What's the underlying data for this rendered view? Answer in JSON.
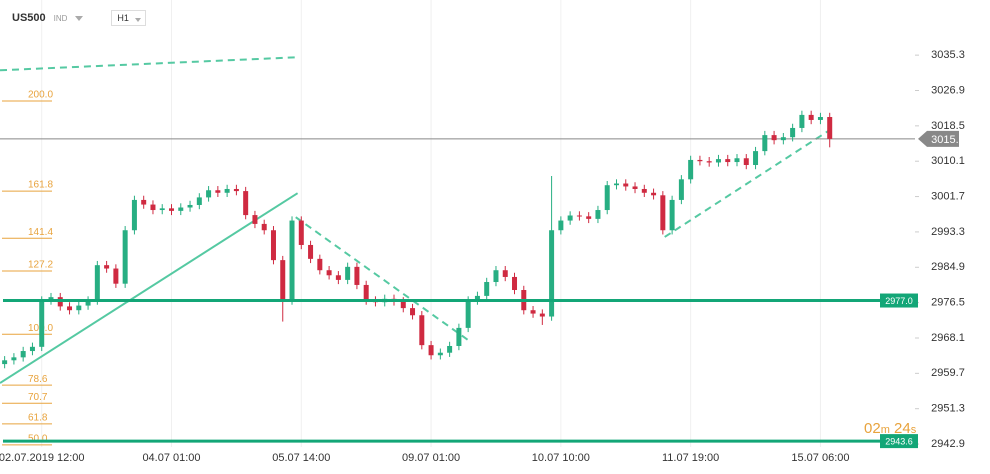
{
  "chart_data": {
    "type": "candlestick",
    "symbol": "US500",
    "market": "IND",
    "timeframe": "H1",
    "categories": [
      null,
      null,
      null,
      null,
      "02.07.2019 12:00",
      null,
      null,
      null,
      null,
      null,
      null,
      null,
      null,
      null,
      null,
      null,
      null,
      null,
      "04.07 01:00",
      null,
      null,
      null,
      null,
      null,
      null,
      null,
      null,
      null,
      null,
      null,
      null,
      null,
      "05.07 14:00",
      null,
      null,
      null,
      null,
      null,
      null,
      null,
      null,
      null,
      null,
      null,
      null,
      null,
      "09.07 01:00",
      null,
      null,
      null,
      null,
      null,
      null,
      null,
      null,
      null,
      null,
      null,
      null,
      null,
      "10.07 10:00",
      null,
      null,
      null,
      null,
      null,
      null,
      null,
      null,
      null,
      null,
      null,
      null,
      null,
      "11.07 19:00",
      null,
      null,
      null,
      null,
      null,
      null,
      null,
      null,
      null,
      null,
      null,
      null,
      null,
      "15.07 06:00",
      null
    ],
    "open": [
      2961.9,
      2962.8,
      2963.5,
      2965.0,
      2966.0,
      2977.0,
      2977.8,
      2975.6,
      2974.7,
      2975.8,
      2977.0,
      2985.4,
      2984.6,
      2981.0,
      2993.7,
      3000.9,
      2999.8,
      2998.5,
      2998.9,
      2998.3,
      2999.1,
      2999.7,
      3001.5,
      3003.2,
      3002.6,
      3003.5,
      3003.0,
      2997.3,
      2995.2,
      2993.7,
      2986.6,
      2977.0,
      2996.0,
      2990.2,
      2986.9,
      2984.2,
      2983.0,
      2981.9,
      2985.0,
      2980.7,
      2977.0,
      2976.6,
      2977.4,
      2976.8,
      2975.2,
      2973.5,
      2966.4,
      2964.0,
      2964.6,
      2966.2,
      2970.5,
      2977.0,
      2978.1,
      2981.4,
      2984.2,
      2982.6,
      2979.5,
      2974.7,
      2973.9,
      2973.2,
      2993.7,
      2996.0,
      2997.2,
      2997.0,
      2996.4,
      2998.5,
      3004.4,
      3004.8,
      3004.1,
      3003.5,
      3002.6,
      3002.0,
      2993.7,
      3000.9,
      3005.8,
      3010.4,
      3010.1,
      3009.8,
      3010.6,
      3009.9,
      3010.8,
      3009.2,
      3012.5,
      3016.3,
      3015.1,
      3015.8,
      3018.0,
      3021.1,
      3019.9,
      3020.6
    ],
    "high": [
      2963.8,
      2964.5,
      2966.0,
      2967.0,
      2978.0,
      2978.8,
      2978.8,
      2976.6,
      2976.8,
      2978.0,
      2986.4,
      2986.4,
      2985.6,
      2994.7,
      3001.9,
      3001.9,
      3000.8,
      2999.9,
      2999.9,
      3000.1,
      3000.7,
      3002.5,
      3004.2,
      3004.2,
      3004.5,
      3004.5,
      3004.0,
      2998.3,
      2996.2,
      2994.7,
      2987.6,
      2997.0,
      2997.0,
      2991.2,
      2987.9,
      2985.2,
      2984.0,
      2986.0,
      2986.0,
      2981.7,
      2978.0,
      2978.4,
      2978.4,
      2977.8,
      2976.2,
      2974.5,
      2967.4,
      2965.6,
      2967.2,
      2971.5,
      2978.0,
      2979.1,
      2982.4,
      2985.2,
      2985.2,
      2983.6,
      2980.5,
      2975.7,
      2974.9,
      3006.6,
      2997.0,
      2998.2,
      2998.2,
      2998.0,
      2999.5,
      3005.4,
      3005.8,
      3005.8,
      3005.1,
      3004.5,
      3003.6,
      3003.0,
      3001.9,
      3006.8,
      3011.4,
      3011.4,
      3011.1,
      3011.6,
      3011.6,
      3011.8,
      3011.8,
      3013.5,
      3017.3,
      3017.3,
      3016.8,
      3019.0,
      3022.1,
      3022.1,
      3021.6,
      3021.6
    ],
    "low": [
      2960.9,
      2961.8,
      2962.5,
      2964.0,
      2965.0,
      2976.0,
      2974.6,
      2973.7,
      2973.7,
      2974.8,
      2976.0,
      2983.6,
      2980.0,
      2980.0,
      2992.7,
      2998.8,
      2997.5,
      2997.5,
      2997.3,
      2997.3,
      2998.1,
      2998.7,
      3000.5,
      3001.6,
      3001.6,
      3002.0,
      2996.3,
      2994.2,
      2992.7,
      2985.6,
      2972.0,
      2976.0,
      2989.2,
      2985.9,
      2983.2,
      2982.0,
      2980.9,
      2980.9,
      2979.7,
      2976.0,
      2975.6,
      2975.6,
      2975.8,
      2974.2,
      2972.5,
      2965.4,
      2963.0,
      2963.0,
      2963.6,
      2965.2,
      2969.5,
      2976.0,
      2977.1,
      2980.4,
      2981.6,
      2978.5,
      2973.7,
      2972.9,
      2971.2,
      2972.2,
      2992.7,
      2995.0,
      2996.0,
      2995.4,
      2995.4,
      2997.5,
      3003.4,
      3003.1,
      3002.5,
      3001.6,
      3001.0,
      2992.7,
      2992.7,
      2999.9,
      3004.8,
      3009.1,
      3008.8,
      3008.8,
      3008.9,
      3008.9,
      3008.2,
      3008.2,
      3011.5,
      3014.1,
      3014.1,
      3014.8,
      3017.0,
      3018.9,
      3018.9,
      3013.4
    ],
    "close": [
      2962.8,
      2963.5,
      2965.0,
      2966.0,
      2977.0,
      2977.8,
      2975.6,
      2974.7,
      2975.8,
      2977.0,
      2985.4,
      2984.6,
      2981.0,
      2993.7,
      3000.9,
      2999.8,
      2998.5,
      2998.9,
      2998.3,
      2999.1,
      2999.7,
      3001.5,
      3003.2,
      3002.6,
      3003.5,
      3003.0,
      2997.3,
      2995.2,
      2993.7,
      2986.6,
      2977.0,
      2996.0,
      2990.2,
      2986.9,
      2984.2,
      2983.0,
      2981.9,
      2985.0,
      2980.7,
      2977.0,
      2976.6,
      2977.4,
      2976.8,
      2975.2,
      2973.5,
      2966.4,
      2964.0,
      2964.6,
      2966.2,
      2970.5,
      2977.0,
      2978.1,
      2981.4,
      2984.2,
      2982.6,
      2979.5,
      2974.7,
      2973.9,
      2973.2,
      2993.7,
      2996.0,
      2997.2,
      2997.0,
      2996.4,
      2998.5,
      3004.4,
      3004.8,
      3004.1,
      3003.5,
      3002.6,
      3002.0,
      2993.7,
      3000.9,
      3005.8,
      3010.4,
      3010.1,
      3009.8,
      3010.6,
      3009.9,
      3010.8,
      3009.2,
      3012.5,
      3016.3,
      3015.1,
      3015.8,
      3018.0,
      3021.1,
      3019.9,
      3020.6,
      3015.4
    ],
    "up_color": "#27ae82",
    "down_color": "#cf2a41",
    "xlim": [
      -0.5,
      98.2
    ],
    "ylim": [
      2942.2,
      3048.4
    ],
    "yticks": [
      3035.3,
      3026.9,
      3018.5,
      3010.1,
      3001.7,
      2993.3,
      2984.9,
      2976.5,
      2968.1,
      2959.7,
      2951.3,
      2942.9
    ],
    "current_price": 3015.4,
    "levels": [
      {
        "value": 2977,
        "label": "2977.0",
        "color": "#13a677"
      },
      {
        "value": 2943.6,
        "label": 2943.6,
        "color": "#13a677"
      }
    ],
    "fib_levels": [
      {
        "label": "200.0",
        "value": 3024.4
      },
      {
        "label": "161.8",
        "value": 3003.0
      },
      {
        "label": "141.4",
        "value": 2991.8
      },
      {
        "label": "127.2",
        "value": 2984.0
      },
      {
        "label": "100.0",
        "value": 2969.0
      },
      {
        "label": "78.6",
        "value": 2956.9
      },
      {
        "label": "70.7",
        "value": 2952.6
      },
      {
        "label": "61.8",
        "value": 2947.7
      },
      {
        "label": "50.0",
        "value": 2942.7
      }
    ],
    "fib_color": "#e8a33d",
    "trend_lines": [
      {
        "x": [
          -0.5,
          31.6
        ],
        "y": [
          3031.7,
          3034.8
        ],
        "dashed": true
      },
      {
        "x": [
          -0.5,
          31.6
        ],
        "y": [
          2957.4,
          3002.5
        ],
        "dashed": false
      },
      {
        "x": [
          31.4,
          50.0
        ],
        "y": [
          2996.8,
          2967.6
        ],
        "dashed": true
      },
      {
        "x": [
          71.2,
          89.0
        ],
        "y": [
          2992.1,
          3017.5
        ],
        "dashed": true
      }
    ],
    "trend_color": "#55c9a2",
    "countdown": [
      "02",
      "m",
      "24",
      "s"
    ]
  }
}
